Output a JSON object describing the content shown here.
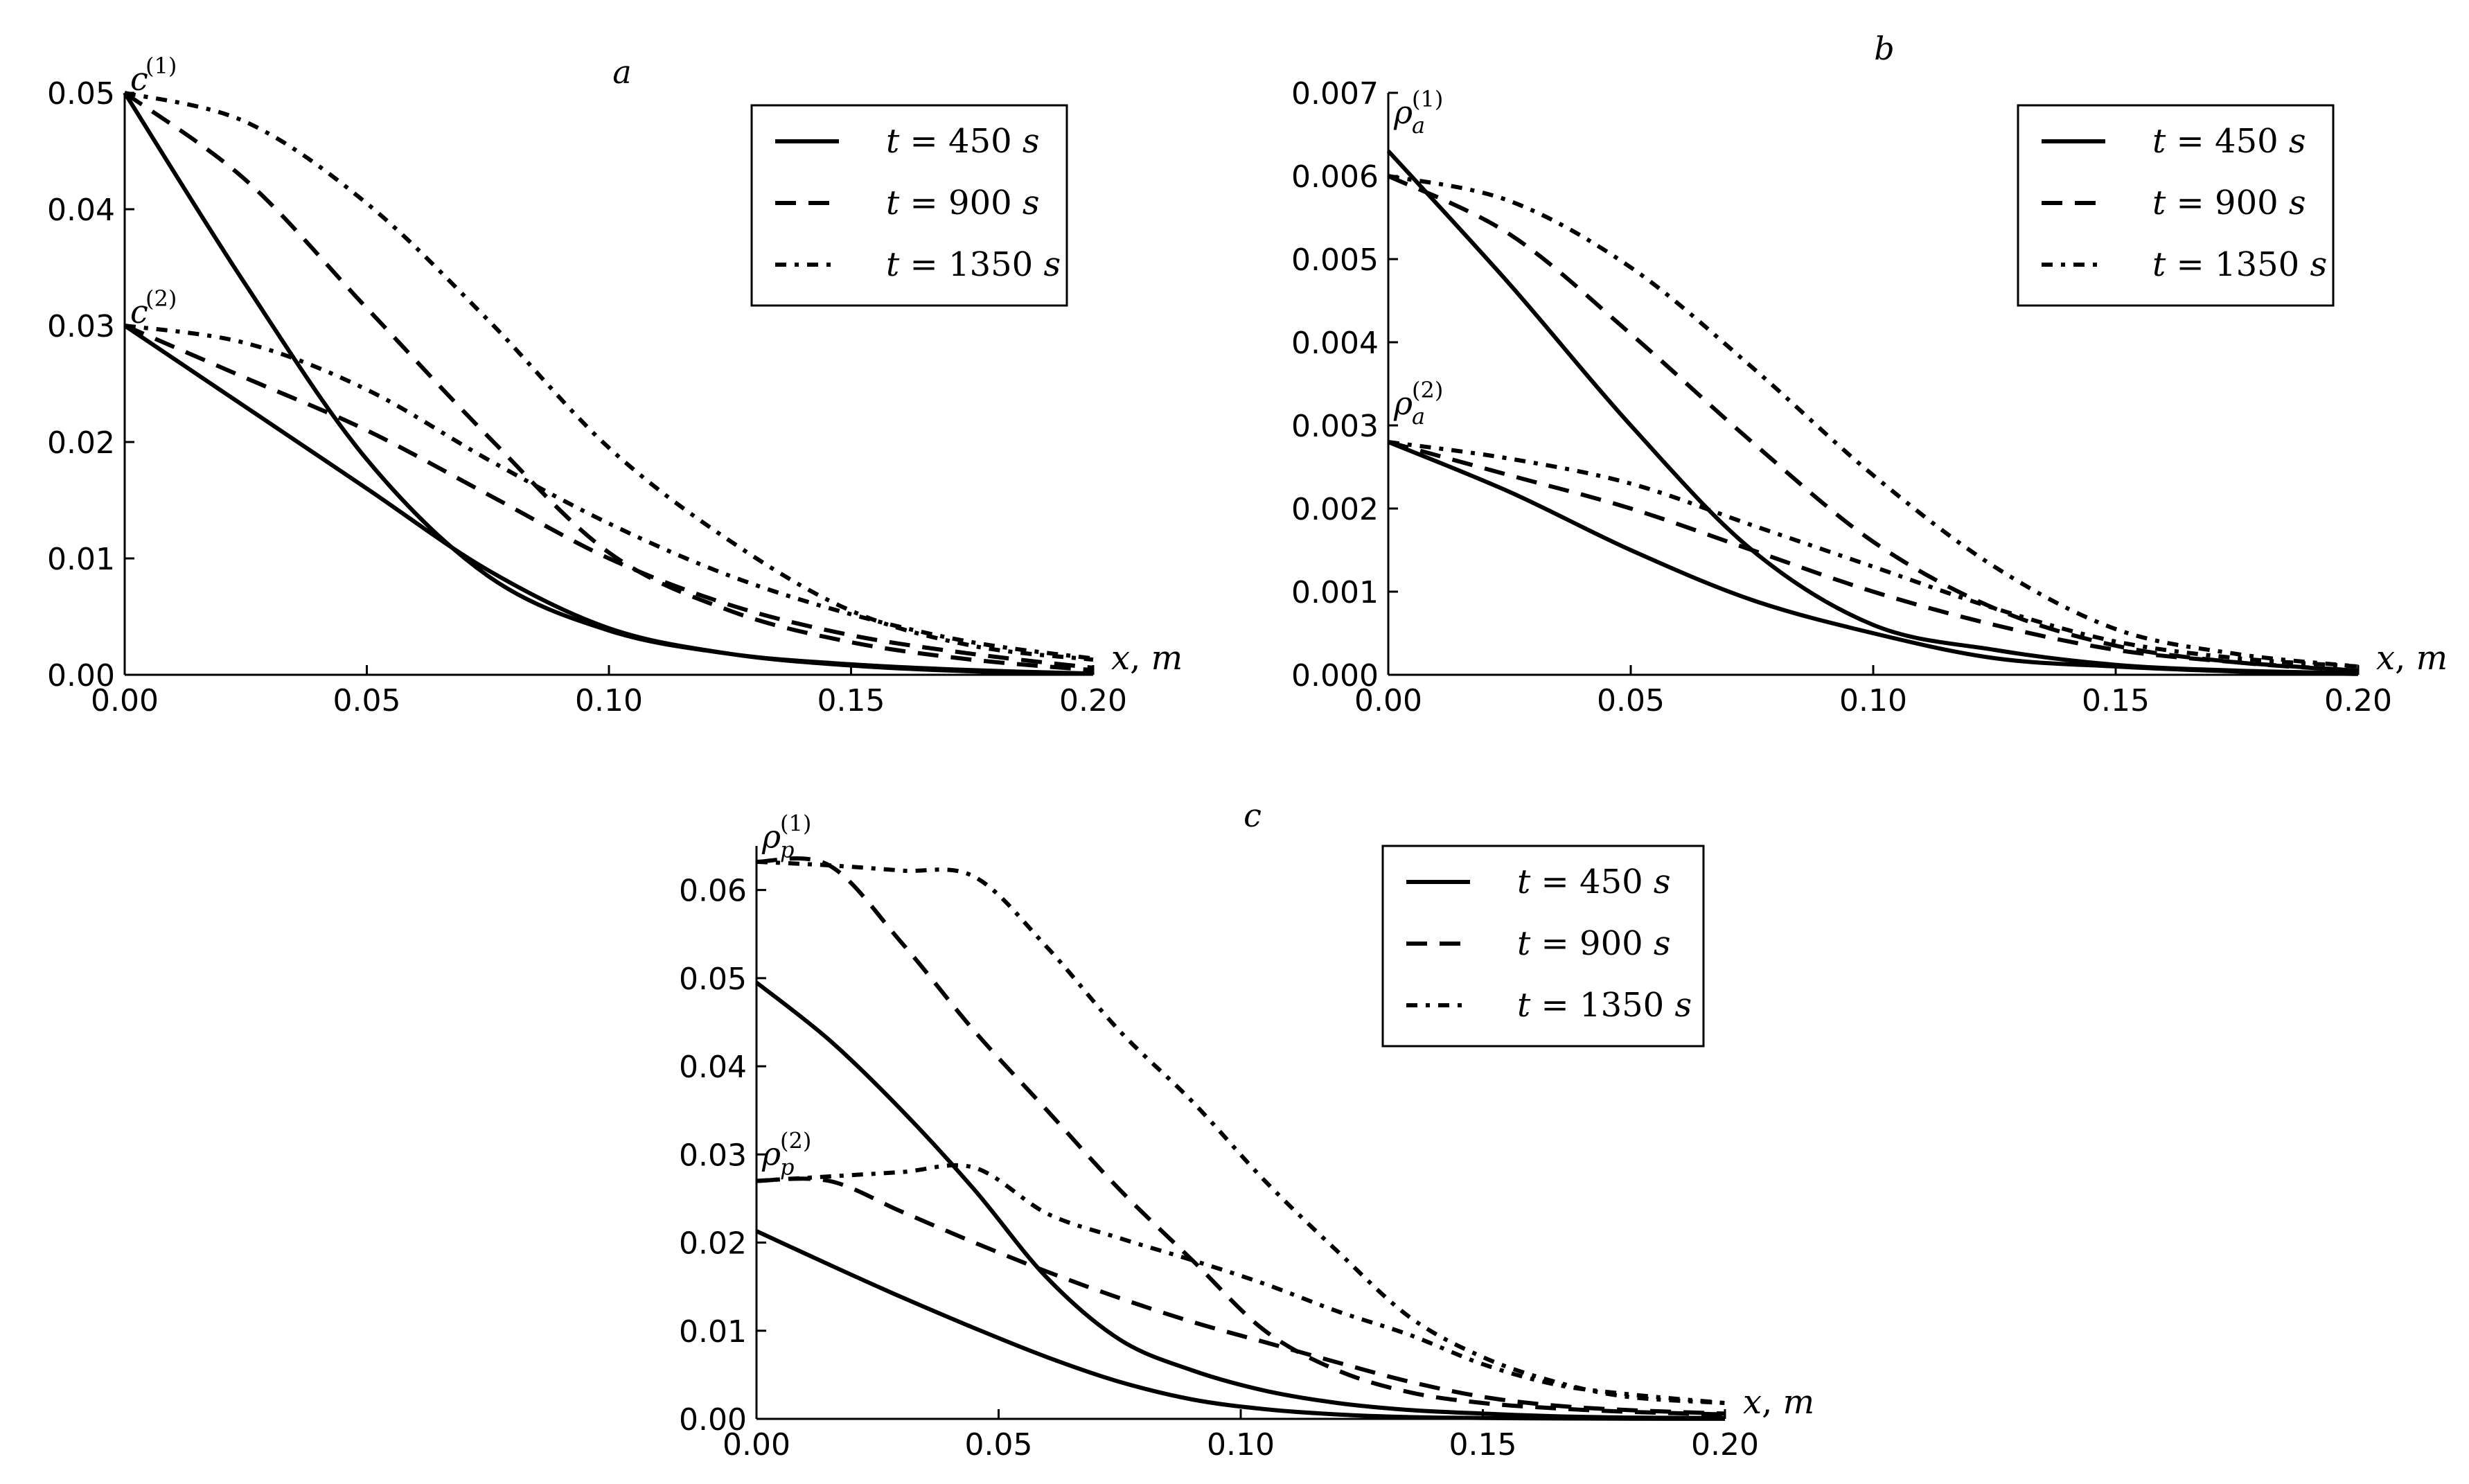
{
  "chart_data": [
    {
      "type": "line",
      "panel": "a",
      "title": "a",
      "xlabel": "x, m",
      "x_label_var": "x",
      "x_label_unit": "m",
      "xlim": [
        0.0,
        0.2
      ],
      "ylim": [
        0.0,
        0.05
      ],
      "xticks": [
        "0.00",
        "0.05",
        "0.10",
        "0.15",
        "0.20"
      ],
      "yticks": [
        "0.00",
        "0.01",
        "0.02",
        "0.03",
        "0.04",
        "0.05"
      ],
      "xtick_values": [
        0.0,
        0.05,
        0.1,
        0.15,
        0.2
      ],
      "ytick_values": [
        0.0,
        0.01,
        0.02,
        0.03,
        0.04,
        0.05
      ],
      "grid": false,
      "legend_position": "top-right",
      "annotations": [
        {
          "base": "c",
          "sub": "",
          "sup": "(1)",
          "x": 0.0,
          "y": 0.05
        },
        {
          "base": "c",
          "sub": "",
          "sup": "(2)",
          "x": 0.0,
          "y": 0.03
        }
      ],
      "x": [
        0.0,
        0.025,
        0.05,
        0.075,
        0.1,
        0.125,
        0.15,
        0.175,
        0.2
      ],
      "series": [
        {
          "name": "t = 450 s",
          "group": "c(1)",
          "style": "solid",
          "values": [
            0.05,
            0.0335,
            0.0185,
            0.0085,
            0.0038,
            0.0018,
            0.0009,
            0.0004,
            0.0001
          ]
        },
        {
          "name": "t = 900 s",
          "group": "c(1)",
          "style": "dashed",
          "values": [
            0.05,
            0.0425,
            0.0315,
            0.0205,
            0.0105,
            0.0055,
            0.0028,
            0.0013,
            0.0004
          ]
        },
        {
          "name": "t = 1350 s",
          "group": "c(1)",
          "style": "dashdot",
          "values": [
            0.05,
            0.0475,
            0.0405,
            0.0305,
            0.0195,
            0.0115,
            0.0055,
            0.0025,
            0.0013
          ]
        },
        {
          "name": "t = 450 s",
          "group": "c(2)",
          "style": "solid",
          "values": [
            0.03,
            0.023,
            0.016,
            0.009,
            0.004,
            0.0018,
            0.0008,
            0.0003,
            0.0001
          ]
        },
        {
          "name": "t = 900 s",
          "group": "c(2)",
          "style": "dashed",
          "values": [
            0.03,
            0.0255,
            0.021,
            0.0155,
            0.01,
            0.006,
            0.0034,
            0.0018,
            0.0006
          ]
        },
        {
          "name": "t = 1350 s",
          "group": "c(2)",
          "style": "dashdot",
          "values": [
            0.03,
            0.0285,
            0.0245,
            0.0185,
            0.013,
            0.0085,
            0.0052,
            0.0028,
            0.0014
          ]
        }
      ],
      "legend": [
        {
          "var": "t",
          "value": "450",
          "unit": "s",
          "style": "solid"
        },
        {
          "var": "t",
          "value": "900",
          "unit": "s",
          "style": "dashed"
        },
        {
          "var": "t",
          "value": "1350",
          "unit": "s",
          "style": "dashdot"
        }
      ]
    },
    {
      "type": "line",
      "panel": "b",
      "title": "b",
      "xlabel": "x, m",
      "x_label_var": "x",
      "x_label_unit": "m",
      "xlim": [
        0.0,
        0.2
      ],
      "ylim": [
        0.0,
        0.007
      ],
      "xticks": [
        "0.00",
        "0.05",
        "0.10",
        "0.15",
        "0.20"
      ],
      "yticks": [
        "0.000",
        "0.001",
        "0.002",
        "0.003",
        "0.004",
        "0.005",
        "0.006",
        "0.007"
      ],
      "xtick_values": [
        0.0,
        0.05,
        0.1,
        0.15,
        0.2
      ],
      "ytick_values": [
        0.0,
        0.001,
        0.002,
        0.003,
        0.004,
        0.005,
        0.006,
        0.007
      ],
      "grid": false,
      "legend_position": "top-right",
      "annotations": [
        {
          "base": "ρ",
          "sub": "a",
          "sup": "(1)",
          "x": 0.0,
          "y": 0.0066
        },
        {
          "base": "ρ",
          "sub": "a",
          "sup": "(2)",
          "x": 0.0,
          "y": 0.0031
        }
      ],
      "x": [
        0.0,
        0.025,
        0.05,
        0.075,
        0.1,
        0.125,
        0.15,
        0.175,
        0.2
      ],
      "series": [
        {
          "name": "t = 450 s",
          "group": "ρa(1)",
          "style": "solid",
          "values": [
            0.0063,
            0.0047,
            0.003,
            0.0015,
            0.0006,
            0.0003,
            0.00012,
            5e-05,
            2e-05
          ]
        },
        {
          "name": "t = 900 s",
          "group": "ρa(1)",
          "style": "dashed",
          "values": [
            0.006,
            0.0053,
            0.0041,
            0.0028,
            0.0016,
            0.0008,
            0.00035,
            0.00015,
            5e-05
          ]
        },
        {
          "name": "t = 1350 s",
          "group": "ρa(1)",
          "style": "dashdot",
          "values": [
            0.006,
            0.0057,
            0.0049,
            0.0037,
            0.0024,
            0.0013,
            0.00055,
            0.00025,
            0.0001
          ]
        },
        {
          "name": "t = 450 s",
          "group": "ρa(2)",
          "style": "solid",
          "values": [
            0.0028,
            0.0022,
            0.0015,
            0.0009,
            0.0005,
            0.0002,
            0.0001,
            4e-05,
            1e-05
          ]
        },
        {
          "name": "t = 900 s",
          "group": "ρa(2)",
          "style": "dashed",
          "values": [
            0.0028,
            0.0024,
            0.002,
            0.0015,
            0.001,
            0.0006,
            0.0003,
            0.00015,
            5e-05
          ]
        },
        {
          "name": "t = 1350 s",
          "group": "ρa(2)",
          "style": "dashdot",
          "values": [
            0.0028,
            0.0026,
            0.0023,
            0.0018,
            0.0013,
            0.0008,
            0.0004,
            0.0002,
            0.0001
          ]
        }
      ],
      "legend": [
        {
          "var": "t",
          "value": "450",
          "unit": "s",
          "style": "solid"
        },
        {
          "var": "t",
          "value": "900",
          "unit": "s",
          "style": "dashed"
        },
        {
          "var": "t",
          "value": "1350",
          "unit": "s",
          "style": "dashdot"
        }
      ]
    },
    {
      "type": "line",
      "panel": "c",
      "title": "c",
      "xlabel": "x, m",
      "x_label_var": "x",
      "x_label_unit": "m",
      "xlim": [
        0.0,
        0.2
      ],
      "ylim": [
        0.0,
        0.065
      ],
      "xticks": [
        "0.00",
        "0.05",
        "0.10",
        "0.15",
        "0.20"
      ],
      "yticks": [
        "0.00",
        "0.01",
        "0.02",
        "0.03",
        "0.04",
        "0.05",
        "0.06"
      ],
      "xtick_values": [
        0.0,
        0.05,
        0.1,
        0.15,
        0.2
      ],
      "ytick_values": [
        0.0,
        0.01,
        0.02,
        0.03,
        0.04,
        0.05,
        0.06
      ],
      "grid": false,
      "legend_position": "top-right",
      "annotations": [
        {
          "base": "ρ",
          "sub": "p",
          "sup": "(1)",
          "x": 0.0,
          "y": 0.0645
        },
        {
          "base": "ρ",
          "sub": "p",
          "sup": "(2)",
          "x": 0.0,
          "y": 0.0285
        }
      ],
      "x": [
        0.0,
        0.015,
        0.03,
        0.045,
        0.06,
        0.075,
        0.09,
        0.105,
        0.12,
        0.135,
        0.15,
        0.165,
        0.18,
        0.2
      ],
      "series": [
        {
          "name": "t = 450 s",
          "group": "ρp(1)",
          "style": "solid",
          "values": [
            0.0495,
            0.043,
            0.035,
            0.026,
            0.016,
            0.009,
            0.0055,
            0.0032,
            0.0018,
            0.001,
            0.0006,
            0.0003,
            0.00015,
            0.0001
          ]
        },
        {
          "name": "t = 900 s",
          "group": "ρp(1)",
          "style": "dashed",
          "values": [
            0.0632,
            0.0628,
            0.054,
            0.044,
            0.035,
            0.026,
            0.018,
            0.01,
            0.0055,
            0.003,
            0.0018,
            0.0012,
            0.0008,
            0.0005
          ]
        },
        {
          "name": "t = 1350 s",
          "group": "ρp(1)",
          "style": "dashdot",
          "values": [
            0.0632,
            0.0628,
            0.0622,
            0.0615,
            0.0535,
            0.044,
            0.036,
            0.027,
            0.019,
            0.0115,
            0.007,
            0.0042,
            0.0025,
            0.0018
          ]
        },
        {
          "name": "t = 450 s",
          "group": "ρp(2)",
          "style": "solid",
          "values": [
            0.0213,
            0.0175,
            0.0138,
            0.0103,
            0.007,
            0.0042,
            0.0022,
            0.0011,
            0.0005,
            0.0002,
            0.0001,
            5e-05,
            2e-05,
            1e-05
          ]
        },
        {
          "name": "t = 900 s",
          "group": "ρp(2)",
          "style": "dashed",
          "values": [
            0.027,
            0.027,
            0.0235,
            0.02,
            0.0167,
            0.0137,
            0.011,
            0.0087,
            0.0064,
            0.0042,
            0.0025,
            0.0015,
            0.001,
            0.0006
          ]
        },
        {
          "name": "t = 1350 s",
          "group": "ρp(2)",
          "style": "dashdot",
          "values": [
            0.027,
            0.0275,
            0.028,
            0.0285,
            0.0233,
            0.0205,
            0.018,
            0.0153,
            0.0122,
            0.0095,
            0.0062,
            0.0039,
            0.0028,
            0.0018
          ]
        }
      ],
      "legend": [
        {
          "var": "t",
          "value": "450",
          "unit": "s",
          "style": "solid"
        },
        {
          "var": "t",
          "value": "900",
          "unit": "s",
          "style": "dashed"
        },
        {
          "var": "t",
          "value": "1350",
          "unit": "s",
          "style": "dashdot"
        }
      ]
    }
  ]
}
